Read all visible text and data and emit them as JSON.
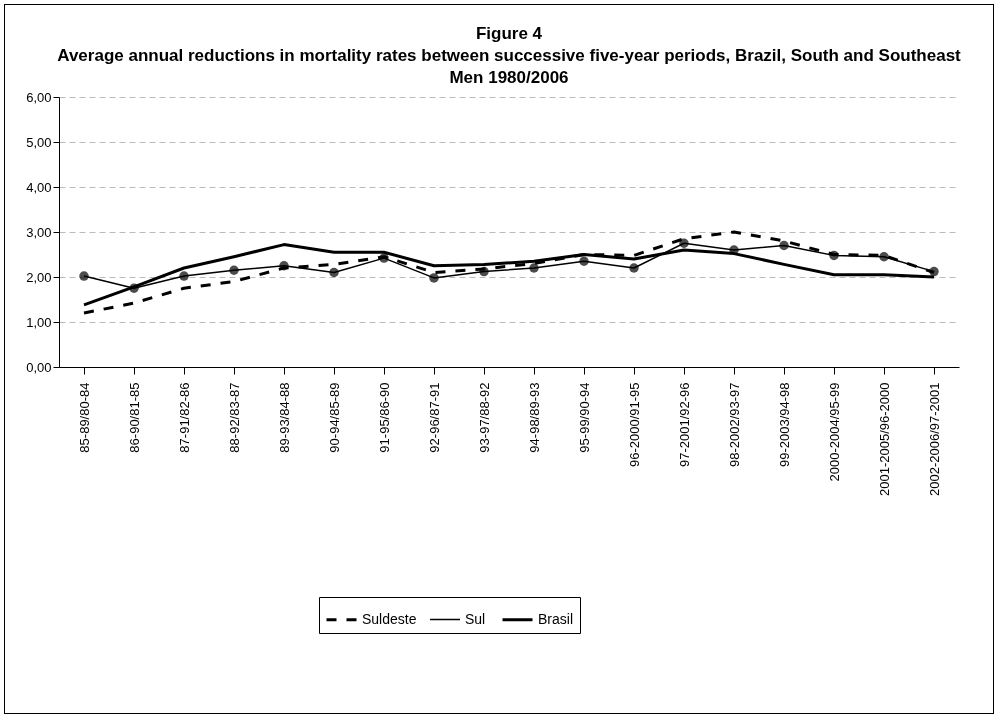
{
  "chart_data": {
    "type": "line",
    "title": "Figure 4\nAverage annual reductions in mortality rates between successive five-year periods, Brazil, South and Southeast\nMen 1980/2006",
    "categories": [
      "85-89/80-84",
      "86-90/81-85",
      "87-91/82-86",
      "88-92/83-87",
      "89-93/84-88",
      "90-94/85-89",
      "91-95/86-90",
      "92-96/87-91",
      "93-97/88-92",
      "94-98/89-93",
      "95-99/90-94",
      "96-2000/91-95",
      "97-2001/92-96",
      "98-2002/93-97",
      "99-2003/94-98",
      "2000-2004/95-99",
      "2001-2005/96-2000",
      "2002-2006/97-2001"
    ],
    "series": [
      {
        "name": "Suldeste",
        "color": "#000000",
        "line_style": "dashed",
        "marker": "none",
        "values": [
          1.2,
          1.42,
          1.75,
          1.9,
          2.2,
          2.28,
          2.45,
          2.1,
          2.18,
          2.3,
          2.5,
          2.48,
          2.85,
          3.0,
          2.8,
          2.5,
          2.48,
          2.1
        ]
      },
      {
        "name": "Sul",
        "color": "#000000",
        "line_style": "solid",
        "marker": "circle",
        "values": [
          2.02,
          1.75,
          2.02,
          2.15,
          2.25,
          2.1,
          2.42,
          1.98,
          2.12,
          2.2,
          2.35,
          2.2,
          2.75,
          2.6,
          2.7,
          2.48,
          2.45,
          2.12
        ]
      },
      {
        "name": "Brasil",
        "color": "#000000",
        "line_style": "solid",
        "marker": "none",
        "values": [
          1.38,
          1.78,
          2.2,
          2.45,
          2.72,
          2.55,
          2.55,
          2.25,
          2.28,
          2.35,
          2.5,
          2.4,
          2.6,
          2.52,
          2.28,
          2.05,
          2.05,
          2.0
        ]
      }
    ],
    "ylim": [
      0,
      6
    ],
    "yticks": [
      {
        "value": 0,
        "label": "0,00"
      },
      {
        "value": 1,
        "label": "1,00"
      },
      {
        "value": 2,
        "label": "2,00"
      },
      {
        "value": 3,
        "label": "3,00"
      },
      {
        "value": 4,
        "label": "4,00"
      },
      {
        "value": 5,
        "label": "5,00"
      },
      {
        "value": 6,
        "label": "6,00"
      }
    ],
    "grid": "y",
    "legend": "bottom"
  }
}
